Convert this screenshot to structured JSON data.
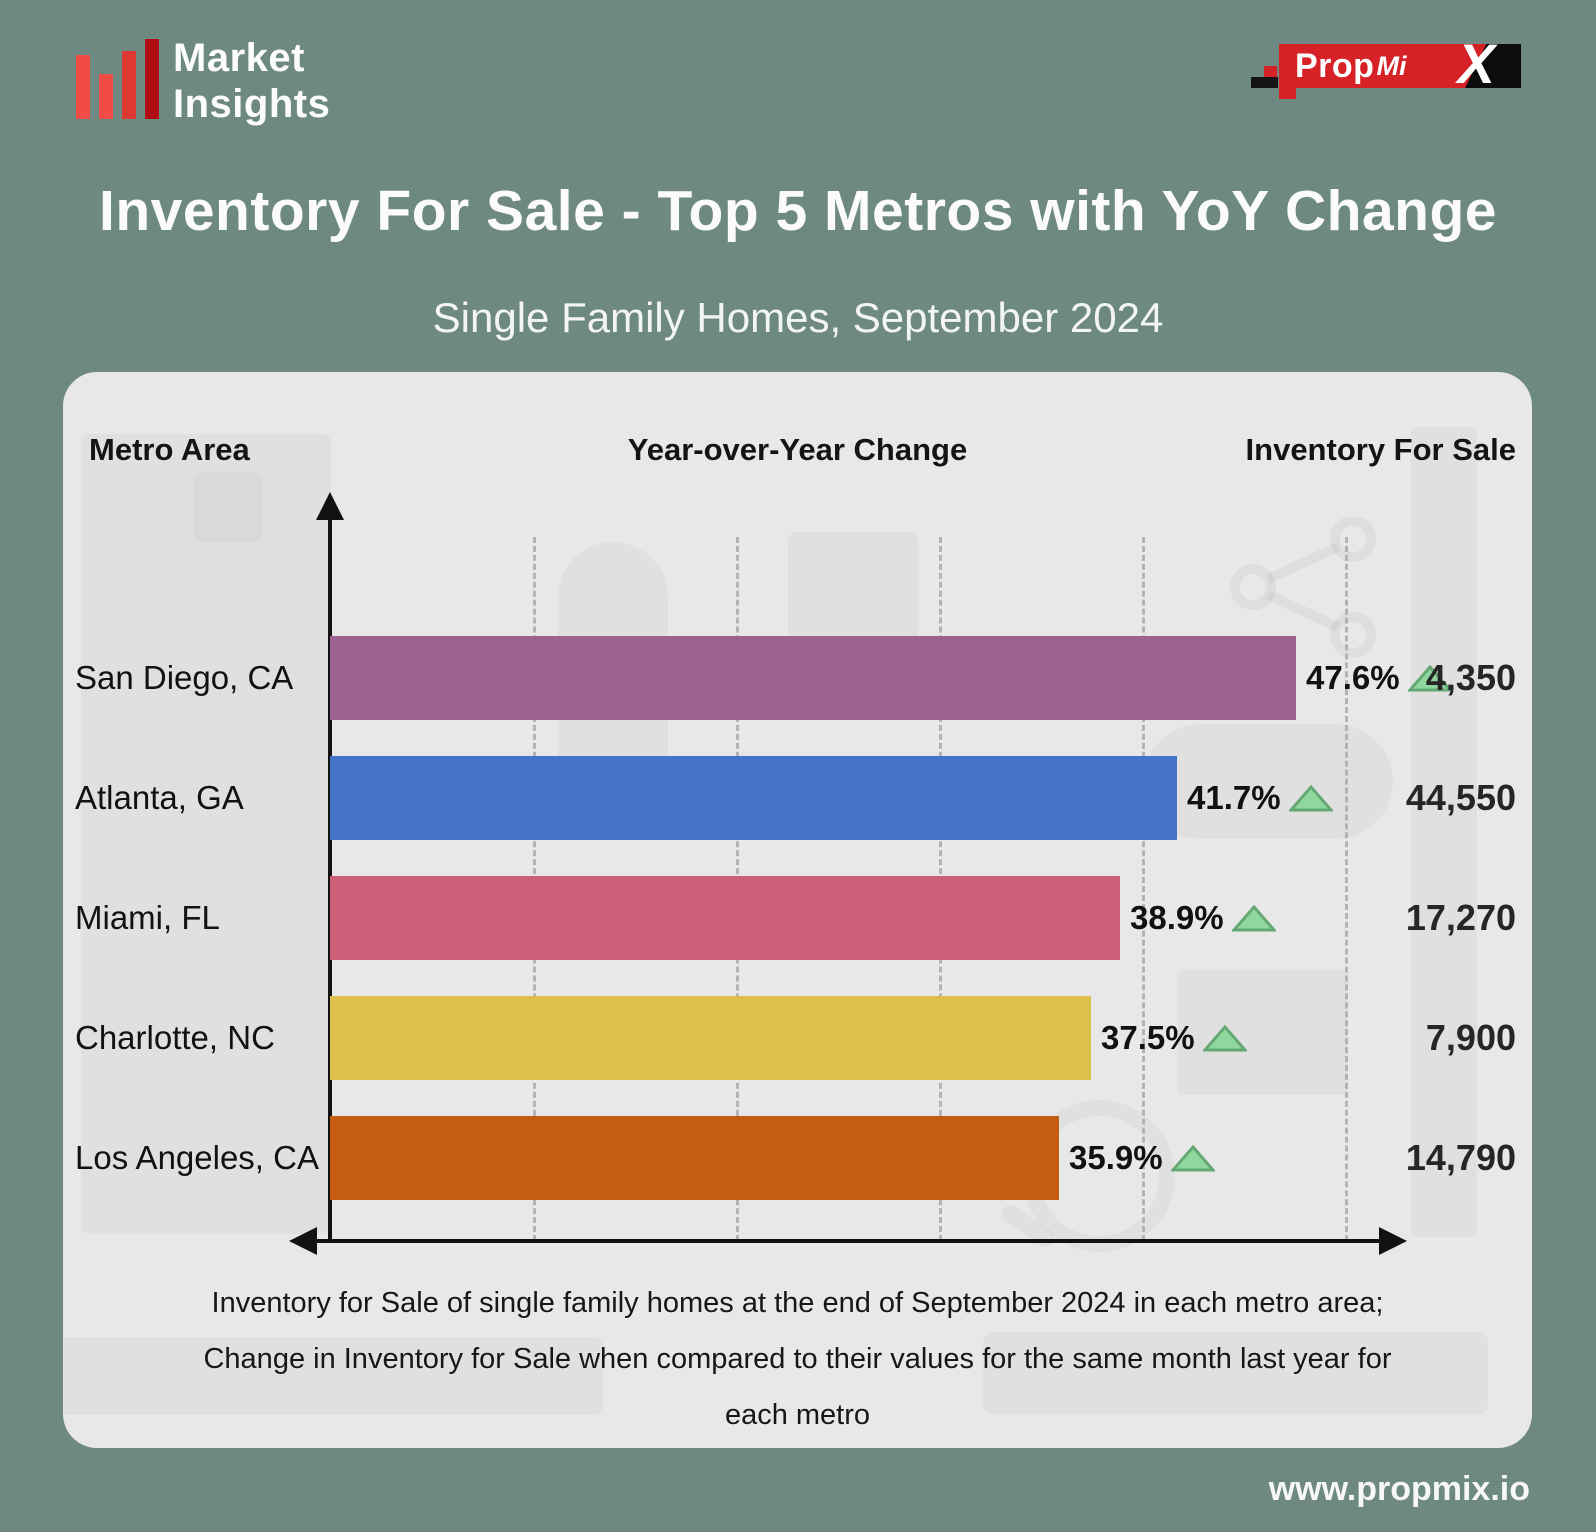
{
  "brand": {
    "name_line1": "Market",
    "name_line2": "Insights"
  },
  "propmix": {
    "part1": "Prop",
    "part2": "Mi",
    "part3": "X"
  },
  "title": "Inventory For Sale - Top 5 Metros with YoY Change",
  "subtitle": "Single Family Homes, September 2024",
  "columns": [
    "Metro Area",
    "Year-over-Year Change",
    "Inventory For Sale"
  ],
  "chart_data": {
    "type": "bar",
    "orientation": "horizontal",
    "categories": [
      "San Diego, CA",
      "Atlanta, GA",
      "Miami, FL",
      "Charlotte, NC",
      "Los Angeles, CA"
    ],
    "series": [
      {
        "name": "Year-over-Year Change (%)",
        "values": [
          47.6,
          41.7,
          38.9,
          37.5,
          35.9
        ]
      },
      {
        "name": "Inventory For Sale (units)",
        "values": [
          4350,
          44550,
          17270,
          7900,
          14790
        ]
      }
    ],
    "yoy_labels": [
      "47.6%",
      "41.7%",
      "38.9%",
      "37.5%",
      "35.9%"
    ],
    "inventory_labels": [
      "4,350",
      "44,550",
      "17,270",
      "7,900",
      "14,790"
    ],
    "change_direction": [
      "up",
      "up",
      "up",
      "up",
      "up"
    ],
    "bar_colors": [
      "#9D6290",
      "#4473C7",
      "#CE5F79",
      "#DCBF4C",
      "#C65C12"
    ],
    "xlim": [
      0,
      50
    ],
    "grid_step_pct": 10,
    "grid": "dashed-vertical",
    "legend": "none"
  },
  "caption": "Inventory for Sale of single family homes at the end of September 2024 in each metro area; Change in Inventory for Sale when compared to their values for the same month last year for each metro",
  "footer": {
    "website": "www.propmix.io"
  },
  "icons": {
    "change_up": "triangle-up-icon"
  },
  "colors": {
    "background": "#6D8981",
    "panel": "#E8E8E9",
    "triangle_fill": "#8FD79F",
    "triangle_stroke": "#65A873",
    "brand_red": "#D62127",
    "logo_bar_colors": [
      "#F04B45",
      "#F04B45",
      "#DE3933",
      "#AE0E13"
    ],
    "axis": "#121212"
  }
}
